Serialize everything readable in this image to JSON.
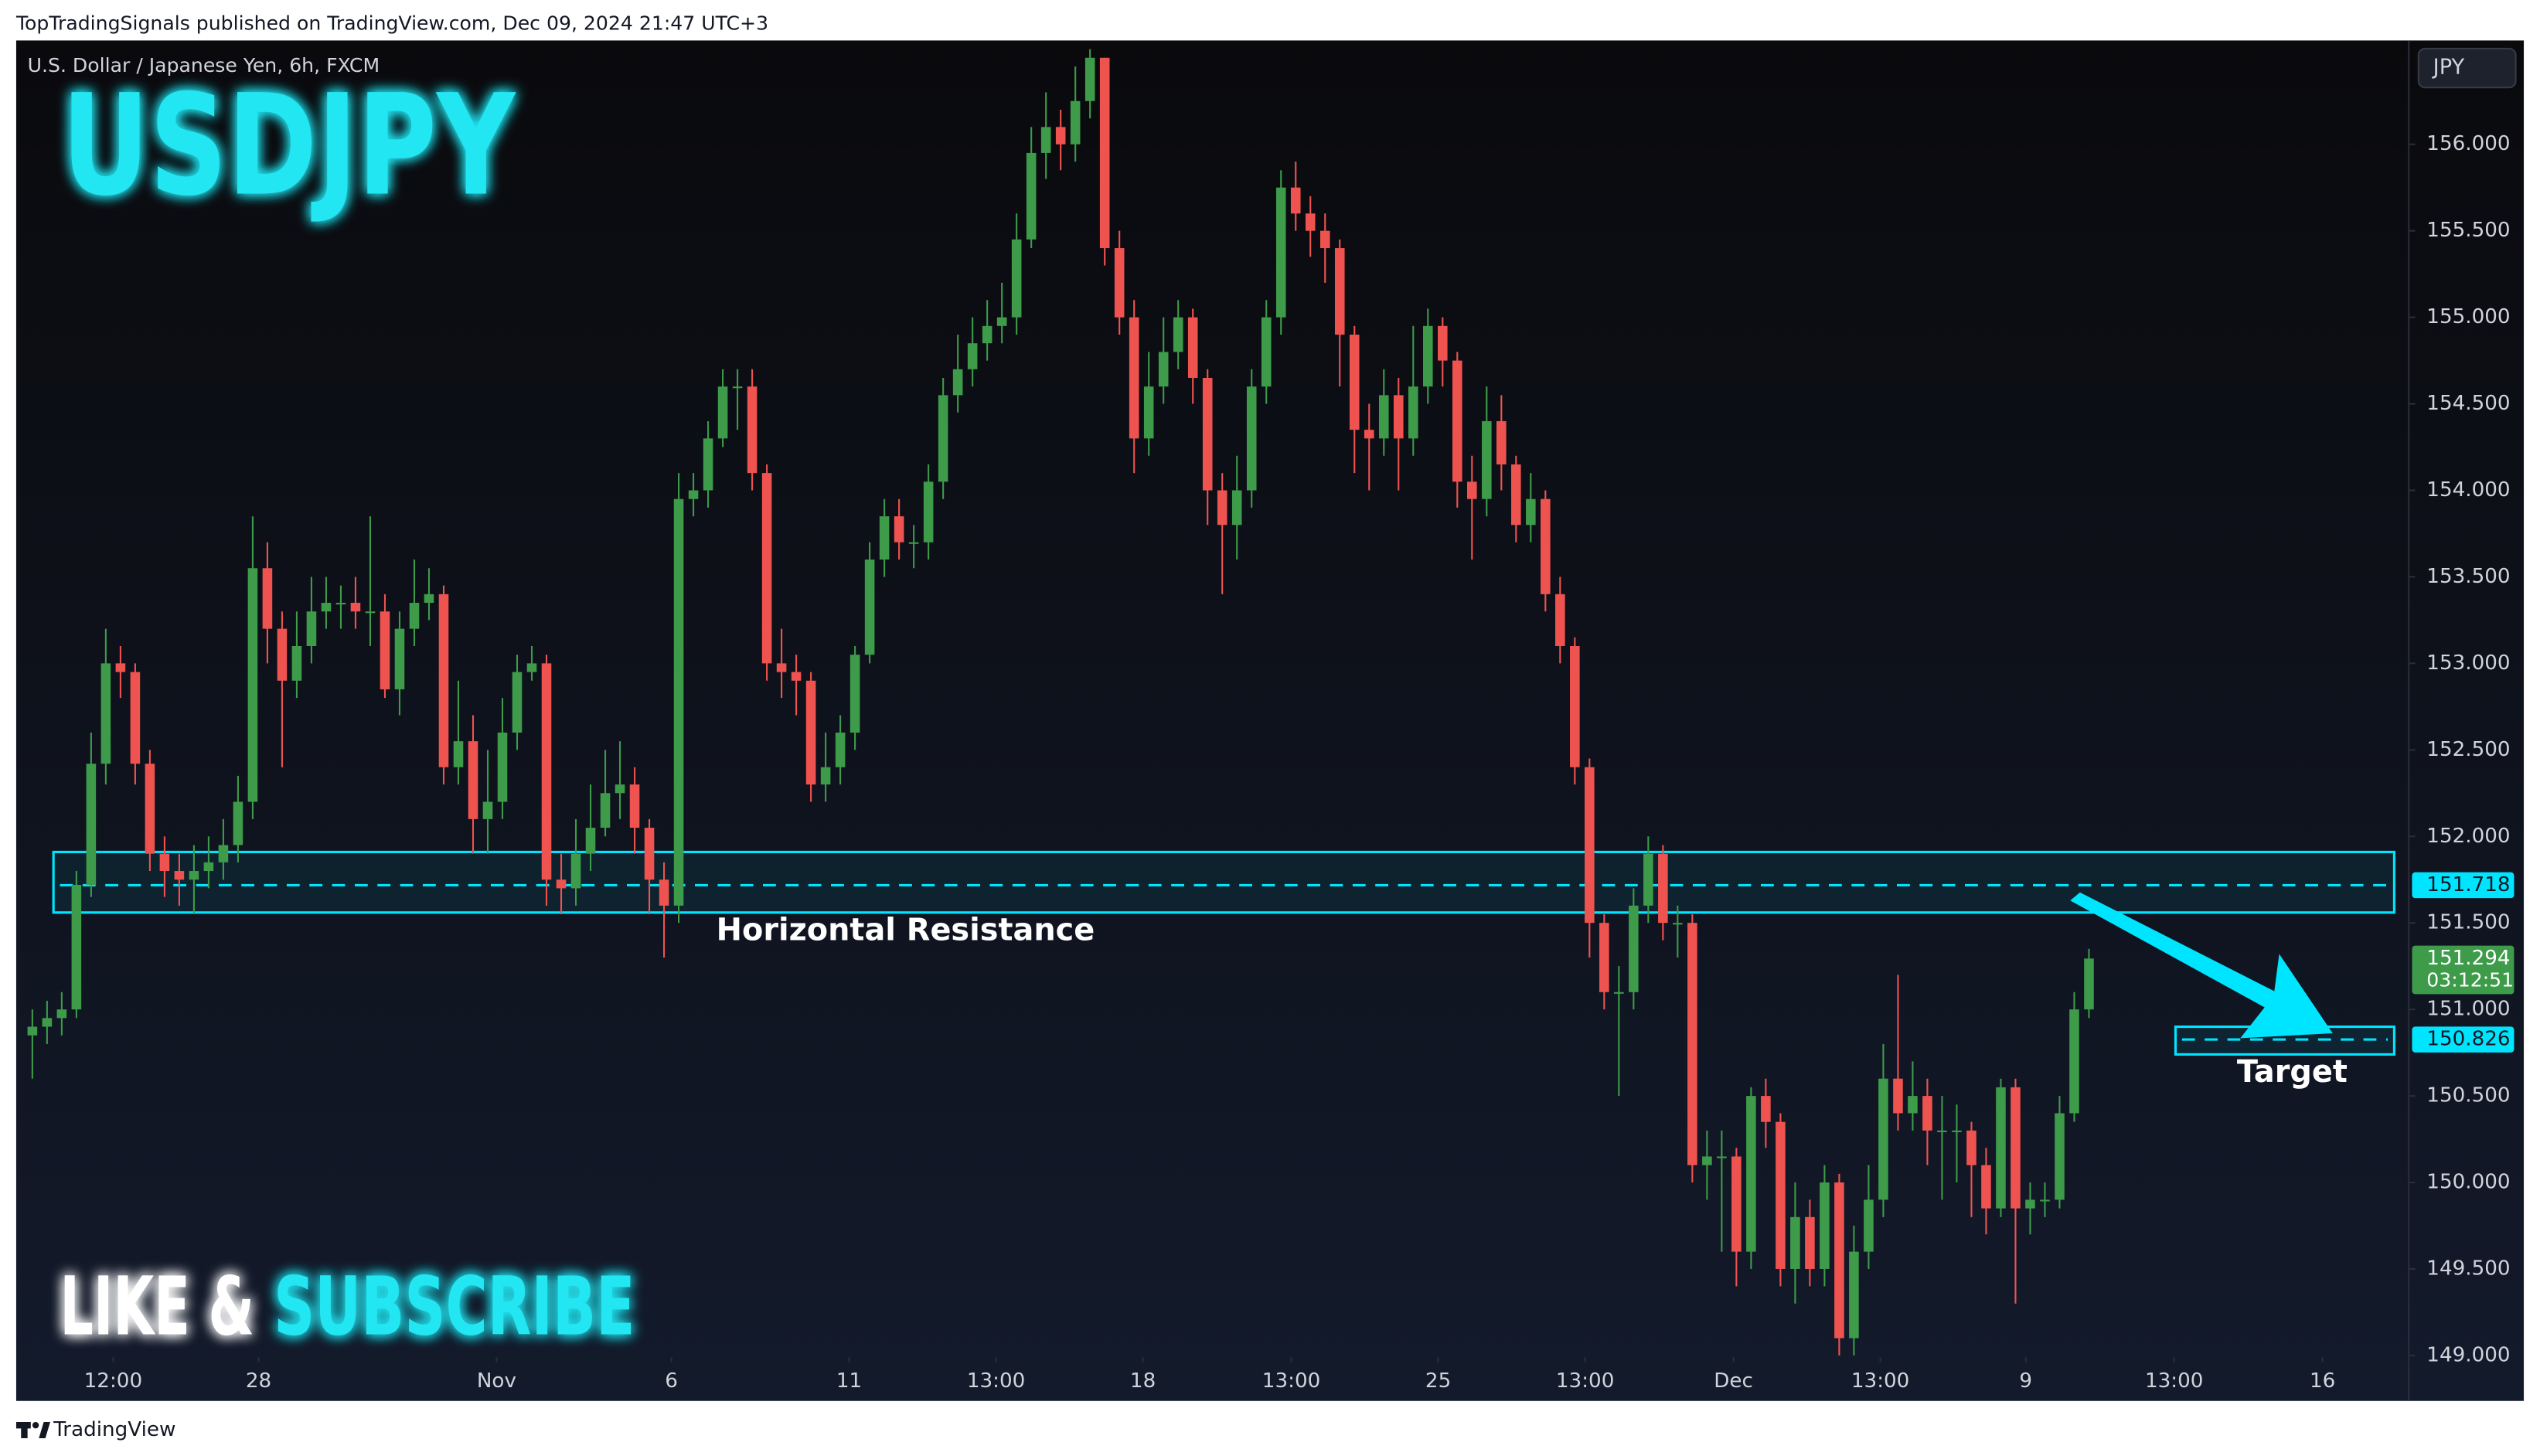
{
  "header": {
    "publisher": "TopTradingSignals published on TradingView.com, Dec 09, 2024 21:47 UTC+3",
    "footer": "TradingView"
  },
  "chart_data": {
    "type": "candlestick",
    "symbol_title": "U.S. Dollar / Japanese Yen, 6h, FXCM",
    "title": "USDJPY",
    "currency": "JPY",
    "up_color": "#3d9b4a",
    "down_color": "#ef5350",
    "open": [
      150.85,
      150.9,
      150.95,
      151.0,
      151.72,
      152.42,
      153.0,
      152.95,
      152.42,
      151.9,
      151.8,
      151.75,
      151.8,
      151.85,
      151.95,
      152.2,
      153.55,
      153.2,
      152.9,
      153.1,
      153.3,
      153.35,
      153.35,
      153.3,
      153.3,
      152.85,
      153.2,
      153.35,
      153.4,
      152.4,
      152.55,
      152.1,
      152.2,
      152.6,
      152.95,
      153.0,
      151.75,
      151.7,
      151.9,
      152.05,
      152.25,
      152.3,
      152.05,
      151.75,
      151.6,
      153.95,
      154.0,
      154.3,
      154.6,
      154.6,
      154.1,
      153.0,
      152.95,
      152.9,
      152.3,
      152.4,
      152.6,
      153.05,
      153.6,
      153.85,
      153.7,
      153.7,
      154.05,
      154.55,
      154.7,
      154.85,
      154.95,
      155.0,
      155.45,
      155.95,
      156.1,
      156.0,
      156.25,
      156.5,
      155.4,
      155.0,
      154.3,
      154.6,
      154.8,
      155.0,
      154.65,
      154.0,
      153.8,
      154.0,
      154.6,
      155.0,
      155.75,
      155.6,
      155.5,
      155.4,
      154.9,
      154.35,
      154.3,
      154.55,
      154.3,
      154.6,
      154.95,
      154.75,
      154.05,
      153.95,
      154.4,
      154.15,
      153.8,
      153.95,
      153.4,
      153.1,
      152.4,
      151.5,
      151.1,
      151.1,
      151.6,
      151.9,
      151.5,
      151.5,
      150.1,
      150.15,
      150.15,
      149.6,
      150.5,
      150.35,
      149.5,
      149.8,
      149.5,
      150.0,
      149.1,
      149.6,
      149.9,
      150.6,
      150.4,
      150.5,
      150.3,
      150.3,
      150.3,
      150.1,
      149.85,
      150.55,
      149.85,
      149.9,
      149.9,
      150.4,
      151.0
    ],
    "high": [
      151.0,
      151.05,
      151.1,
      151.8,
      152.6,
      153.2,
      153.1,
      153.0,
      152.5,
      152.0,
      151.9,
      151.95,
      152.0,
      152.1,
      152.35,
      153.85,
      153.7,
      153.3,
      153.3,
      153.5,
      153.5,
      153.45,
      153.5,
      153.85,
      153.4,
      153.3,
      153.6,
      153.55,
      153.45,
      152.9,
      152.7,
      152.5,
      152.8,
      153.05,
      153.1,
      153.05,
      151.9,
      152.1,
      152.3,
      152.5,
      152.55,
      152.4,
      152.1,
      151.85,
      154.1,
      154.1,
      154.4,
      154.7,
      154.7,
      154.7,
      154.15,
      153.2,
      153.05,
      152.95,
      152.6,
      152.7,
      153.1,
      153.7,
      153.95,
      153.95,
      153.8,
      154.15,
      154.65,
      154.9,
      155.0,
      155.1,
      155.2,
      155.6,
      156.1,
      156.3,
      156.2,
      156.45,
      156.55,
      156.5,
      155.5,
      155.1,
      154.8,
      155.0,
      155.1,
      155.05,
      154.7,
      154.1,
      154.2,
      154.7,
      155.1,
      155.85,
      155.9,
      155.7,
      155.6,
      155.45,
      154.95,
      154.5,
      154.7,
      154.65,
      154.95,
      155.05,
      155.0,
      154.8,
      154.2,
      154.6,
      154.55,
      154.2,
      154.1,
      154.0,
      153.5,
      153.15,
      152.45,
      151.55,
      151.25,
      151.7,
      152.0,
      151.95,
      151.6,
      151.55,
      150.3,
      150.3,
      150.2,
      150.55,
      150.6,
      150.4,
      150.0,
      149.9,
      150.1,
      150.05,
      149.75,
      150.1,
      150.8,
      151.2,
      150.7,
      150.6,
      150.5,
      150.45,
      150.35,
      150.2,
      150.6,
      150.6,
      150.0,
      150.0,
      150.5,
      151.1,
      151.35
    ],
    "low": [
      150.6,
      150.8,
      150.85,
      150.95,
      151.65,
      152.3,
      152.8,
      152.3,
      151.8,
      151.65,
      151.6,
      151.55,
      151.7,
      151.75,
      151.85,
      152.1,
      153.0,
      152.4,
      152.8,
      153.0,
      153.2,
      153.2,
      153.2,
      153.1,
      152.8,
      152.7,
      153.1,
      153.25,
      152.3,
      152.3,
      151.9,
      151.9,
      152.1,
      152.5,
      152.9,
      151.6,
      151.55,
      151.6,
      151.8,
      152.0,
      152.1,
      151.9,
      151.55,
      151.3,
      151.5,
      153.85,
      153.9,
      154.25,
      154.35,
      154.0,
      152.9,
      152.8,
      152.7,
      152.2,
      152.2,
      152.3,
      152.5,
      153.0,
      153.5,
      153.6,
      153.55,
      153.6,
      153.95,
      154.45,
      154.6,
      154.75,
      154.85,
      154.9,
      155.4,
      155.8,
      155.85,
      155.9,
      156.15,
      155.3,
      154.9,
      154.1,
      154.2,
      154.5,
      154.7,
      154.5,
      153.8,
      153.4,
      153.6,
      153.9,
      154.5,
      154.9,
      155.5,
      155.35,
      155.2,
      154.6,
      154.1,
      154.0,
      154.2,
      154.0,
      154.2,
      154.5,
      154.6,
      153.9,
      153.6,
      153.85,
      154.0,
      153.7,
      153.7,
      153.3,
      153.0,
      152.3,
      151.3,
      151.0,
      150.5,
      151.0,
      151.5,
      151.4,
      151.3,
      150.0,
      149.9,
      149.6,
      149.4,
      149.5,
      150.2,
      149.4,
      149.3,
      149.4,
      149.4,
      149.0,
      149.0,
      149.5,
      149.8,
      150.3,
      150.3,
      150.1,
      149.9,
      150.0,
      149.8,
      149.7,
      149.8,
      149.3,
      149.7,
      149.8,
      149.85,
      150.35,
      150.95
    ],
    "close": [
      150.9,
      150.95,
      151.0,
      151.72,
      152.42,
      153.0,
      152.95,
      152.42,
      151.9,
      151.8,
      151.75,
      151.8,
      151.85,
      151.95,
      152.2,
      153.55,
      153.2,
      152.9,
      153.1,
      153.3,
      153.35,
      153.35,
      153.3,
      153.3,
      152.85,
      153.2,
      153.35,
      153.4,
      152.4,
      152.55,
      152.1,
      152.2,
      152.6,
      152.95,
      153.0,
      151.75,
      151.7,
      151.9,
      152.05,
      152.25,
      152.3,
      152.05,
      151.75,
      151.6,
      153.95,
      154.0,
      154.3,
      154.6,
      154.6,
      154.1,
      153.0,
      152.95,
      152.9,
      152.3,
      152.4,
      152.6,
      153.05,
      153.6,
      153.85,
      153.7,
      153.7,
      154.05,
      154.55,
      154.7,
      154.85,
      154.95,
      155.0,
      155.45,
      155.95,
      156.1,
      156.0,
      156.25,
      156.5,
      155.4,
      155.0,
      154.3,
      154.6,
      154.8,
      155.0,
      154.65,
      154.0,
      153.8,
      154.0,
      154.6,
      155.0,
      155.75,
      155.6,
      155.5,
      155.4,
      154.9,
      154.35,
      154.3,
      154.55,
      154.3,
      154.6,
      154.95,
      154.75,
      154.05,
      153.95,
      154.4,
      154.15,
      153.8,
      153.95,
      153.4,
      153.1,
      152.4,
      151.5,
      151.1,
      151.1,
      151.6,
      151.9,
      151.5,
      151.5,
      150.1,
      150.15,
      150.15,
      149.6,
      150.5,
      150.35,
      149.5,
      149.8,
      149.5,
      150.0,
      149.1,
      149.6,
      149.9,
      150.6,
      150.4,
      150.5,
      150.3,
      150.3,
      150.3,
      150.1,
      149.85,
      150.55,
      149.85,
      149.9,
      149.9,
      150.4,
      151.0,
      151.294
    ],
    "xlim": [
      -1.1,
      161
    ],
    "xticks": [
      {
        "value": 5.5,
        "label": "12:00"
      },
      {
        "value": 15.4,
        "label": "28"
      },
      {
        "value": 31.6,
        "label": "Nov"
      },
      {
        "value": 43.5,
        "label": "6"
      },
      {
        "value": 55.6,
        "label": "11"
      },
      {
        "value": 65.6,
        "label": "13:00"
      },
      {
        "value": 75.6,
        "label": "18"
      },
      {
        "value": 85.7,
        "label": "13:00"
      },
      {
        "value": 95.7,
        "label": "25"
      },
      {
        "value": 105.7,
        "label": "13:00"
      },
      {
        "value": 115.8,
        "label": "Dec"
      },
      {
        "value": 125.8,
        "label": "13:00"
      },
      {
        "value": 135.7,
        "label": "9"
      },
      {
        "value": 145.8,
        "label": "13:00"
      },
      {
        "value": 155.9,
        "label": "16"
      }
    ],
    "ylim": [
      148.99,
      156.6
    ],
    "yticks": [
      {
        "value": 149,
        "label": "149.000"
      },
      {
        "value": 149.5,
        "label": "149.500"
      },
      {
        "value": 150,
        "label": "150.000"
      },
      {
        "value": 150.5,
        "label": "150.500"
      },
      {
        "value": 151,
        "label": "151.000"
      },
      {
        "value": 151.5,
        "label": "151.500"
      },
      {
        "value": 152,
        "label": "152.000"
      },
      {
        "value": 152.5,
        "label": "152.500"
      },
      {
        "value": 153,
        "label": "153.000"
      },
      {
        "value": 153.5,
        "label": "153.500"
      },
      {
        "value": 154,
        "label": "154.000"
      },
      {
        "value": 154.5,
        "label": "154.500"
      },
      {
        "value": 155,
        "label": "155.000"
      },
      {
        "value": 155.5,
        "label": "155.500"
      },
      {
        "value": 156,
        "label": "156.000"
      }
    ],
    "zone_color": "#00e5ff",
    "annotations": [
      {
        "text": "Horizontal Resistance",
        "low": 151.56,
        "high": 151.91,
        "level": 151.718
      },
      {
        "text": "Target",
        "low": 150.74,
        "high": 150.9,
        "level": 150.826
      }
    ],
    "last_price": {
      "value": 151.294,
      "countdown": "03:12:51"
    },
    "promo": [
      "LIKE &",
      "SUBSCRIBE"
    ]
  }
}
